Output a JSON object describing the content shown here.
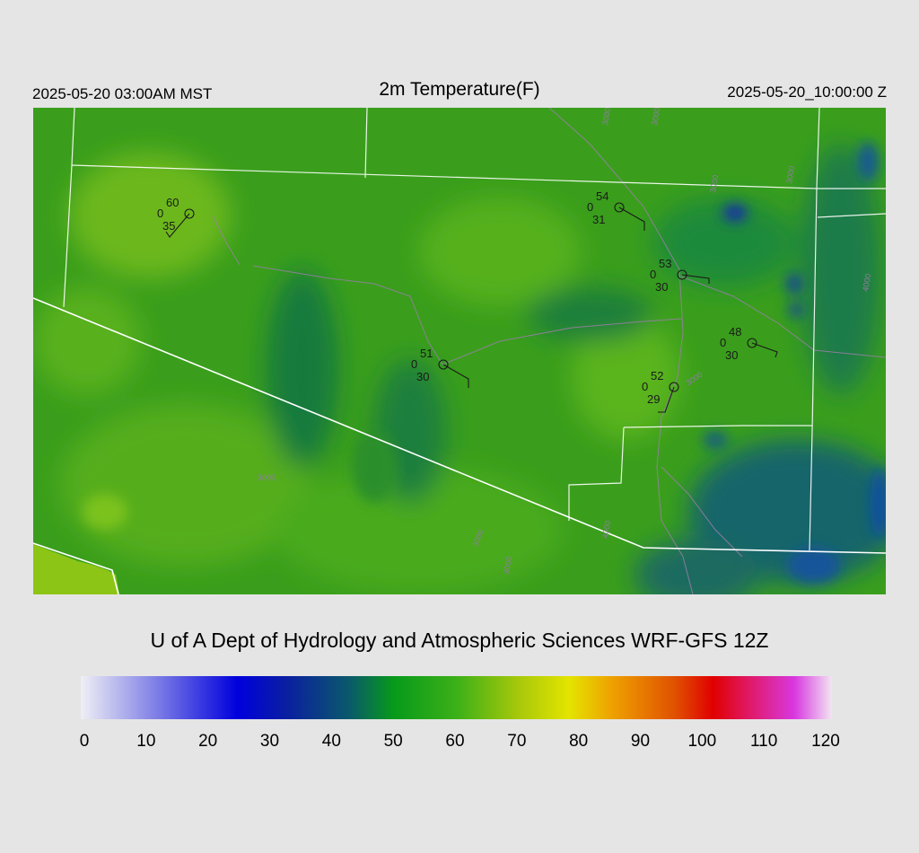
{
  "header": {
    "local_time": "2025-05-20 03:00AM MST",
    "title": "2m Temperature(F)",
    "utc_time": "2025-05-20_10:00:00 Z"
  },
  "footer": {
    "credit": "U of A Dept of Hydrology and Atmospheric Sciences WRF-GFS 12Z"
  },
  "colorbar": {
    "min": 0,
    "max": 120,
    "ticks": [
      "0",
      "10",
      "20",
      "30",
      "40",
      "50",
      "60",
      "70",
      "80",
      "90",
      "100",
      "110",
      "120"
    ],
    "stops": [
      {
        "v": 0,
        "c": "#efeff5"
      },
      {
        "v": 12,
        "c": "#7f7fe6"
      },
      {
        "v": 25,
        "c": "#0000dd"
      },
      {
        "v": 33,
        "c": "#0a1fa0"
      },
      {
        "v": 43,
        "c": "#0a5a6a"
      },
      {
        "v": 50,
        "c": "#079a1a"
      },
      {
        "v": 60,
        "c": "#3cb018"
      },
      {
        "v": 70,
        "c": "#a8c80a"
      },
      {
        "v": 78,
        "c": "#e4e400"
      },
      {
        "v": 85,
        "c": "#eea000"
      },
      {
        "v": 95,
        "c": "#e05000"
      },
      {
        "v": 101,
        "c": "#e00000"
      },
      {
        "v": 107,
        "c": "#e01a6a"
      },
      {
        "v": 114,
        "c": "#d838e0"
      },
      {
        "v": 120,
        "c": "#f2e4f2"
      }
    ]
  },
  "stations": [
    {
      "temp": "60",
      "precip": "0",
      "dew": "35"
    },
    {
      "temp": "54",
      "precip": "0",
      "dew": "31"
    },
    {
      "temp": "53",
      "precip": "0",
      "dew": "30"
    },
    {
      "temp": "51",
      "precip": "0",
      "dew": "30"
    },
    {
      "temp": "48",
      "precip": "0",
      "dew": "30"
    },
    {
      "temp": "52",
      "precip": "0",
      "dew": "29"
    }
  ],
  "contour_labels": [
    "3000",
    "3000",
    "3000",
    "3000",
    "3000",
    "3000",
    "3000",
    "3000",
    "4000",
    "4000"
  ],
  "colors": {
    "background": "#e5e5e5",
    "boundary": "#ffffff",
    "road": "#9a7fa8"
  }
}
